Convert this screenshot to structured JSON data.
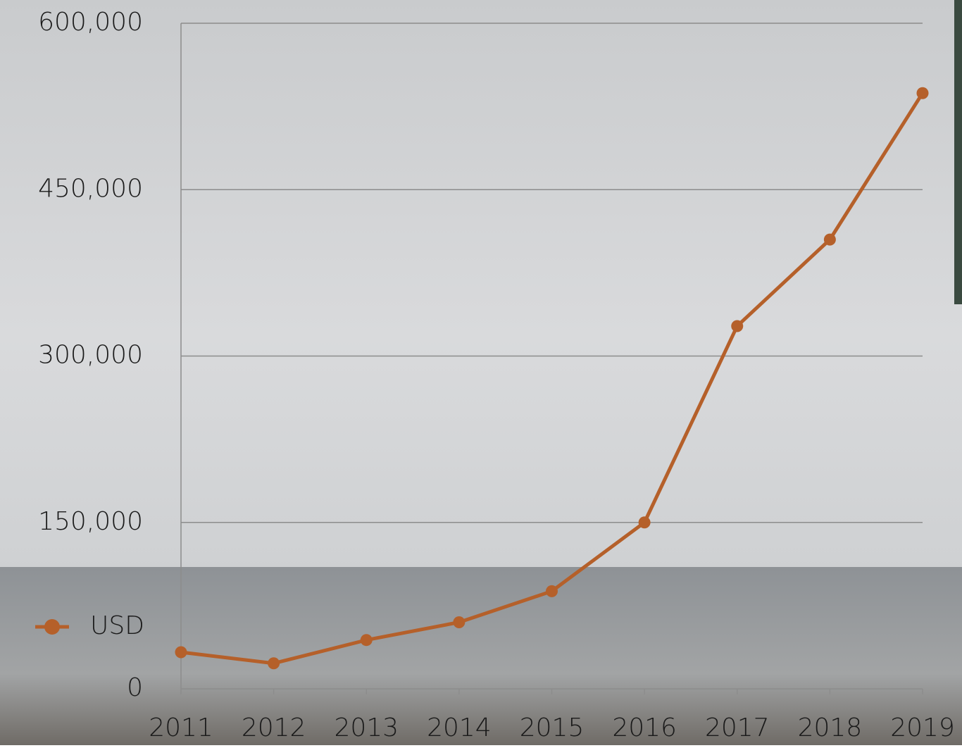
{
  "chart_data": {
    "type": "line",
    "categories": [
      "2011",
      "2012",
      "2013",
      "2014",
      "2015",
      "2016",
      "2017",
      "2018",
      "2019"
    ],
    "series": [
      {
        "name": "USD",
        "color": "#b5602a",
        "values": [
          33000,
          23000,
          44000,
          60000,
          88000,
          150000,
          327000,
          405000,
          537000
        ]
      }
    ],
    "ylim": [
      0,
      600000
    ],
    "yticks": [
      0,
      {
        "value": 150000,
        "label": "150,000"
      },
      {
        "value": 300000,
        "label": "300,000"
      },
      {
        "value": 450000,
        "label": "450,000"
      },
      {
        "value": 600000,
        "label": "600,000"
      }
    ],
    "grid": true,
    "legend": "bottom-left"
  }
}
